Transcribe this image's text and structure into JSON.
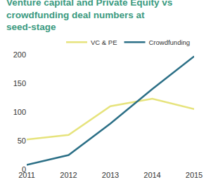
{
  "chart_data": {
    "type": "line",
    "title": "Venture capital and Private Equity vs crowdfunding deal numbers at seed-stage",
    "categories": [
      "2011",
      "2012",
      "2013",
      "2014",
      "2015"
    ],
    "series": [
      {
        "name": "VC & PE",
        "color": "#e6e37c",
        "values": [
          52,
          60,
          110,
          123,
          105
        ]
      },
      {
        "name": "Crowdfunding",
        "color": "#2b6f86",
        "values": [
          8,
          25,
          80,
          140,
          197
        ]
      }
    ],
    "ylim": [
      0,
      200
    ],
    "yticks": [
      0,
      50,
      100,
      150,
      200
    ],
    "grid": false,
    "legend": "top right"
  }
}
